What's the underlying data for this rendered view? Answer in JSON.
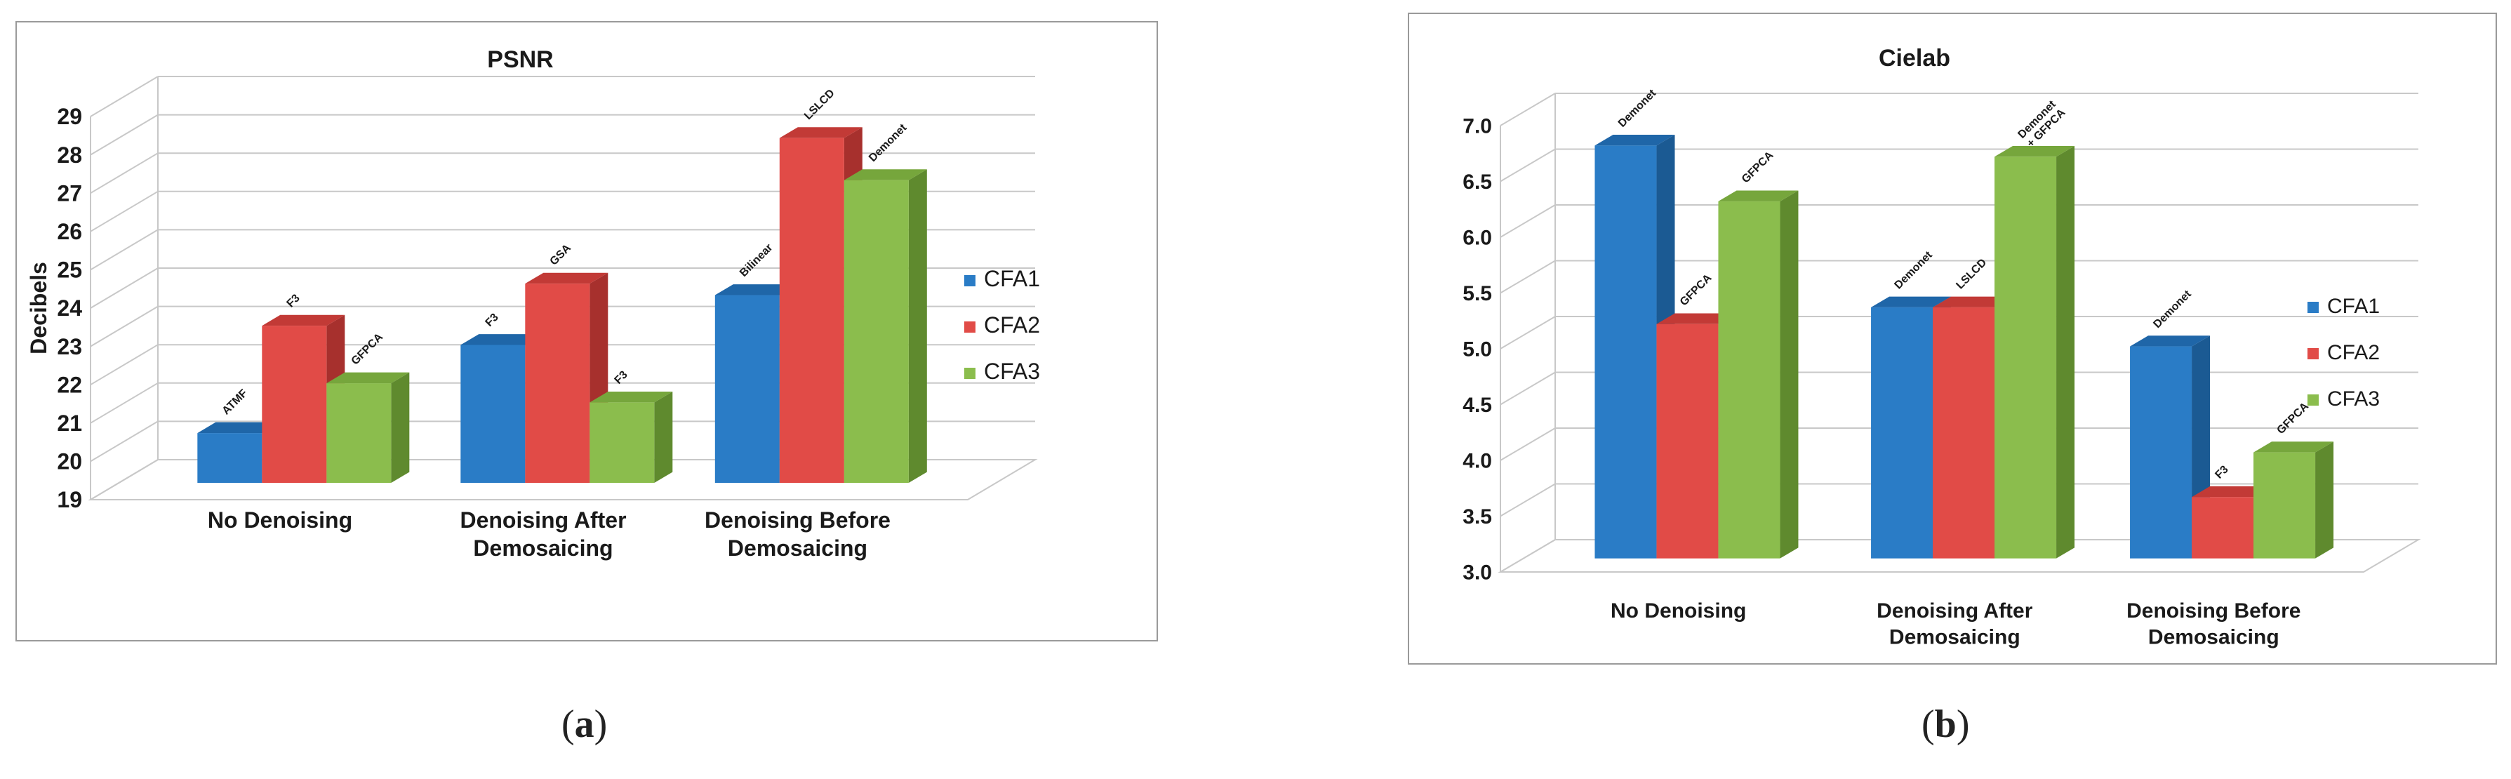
{
  "chart_data": [
    {
      "type": "bar",
      "title": "PSNR",
      "ylabel": "Decibels",
      "xlabel": "",
      "ylim": [
        19,
        29
      ],
      "ytick_step": 1,
      "ytick_decimals": 0,
      "categories": [
        "No Denoising",
        "Denoising After Demosaicing",
        "Denoising Before Demosaicing"
      ],
      "category_lines": [
        [
          "No Denoising"
        ],
        [
          "Denoising After",
          "Demosaicing"
        ],
        [
          "Denoising Before",
          "Demosaicing"
        ]
      ],
      "series": [
        {
          "name": "CFA1",
          "values": [
            20.3,
            22.6,
            23.9
          ],
          "labels": [
            [
              "ATMF"
            ],
            [
              "F3"
            ],
            [
              "Bilinear"
            ]
          ]
        },
        {
          "name": "CFA2",
          "values": [
            23.1,
            24.2,
            28.0
          ],
          "labels": [
            [
              "F3"
            ],
            [
              "GSA"
            ],
            [
              "LSLCD"
            ]
          ]
        },
        {
          "name": "CFA3",
          "values": [
            21.6,
            21.1,
            26.9
          ],
          "labels": [
            [
              "GFPCA"
            ],
            [
              "F3"
            ],
            [
              "Demonet"
            ]
          ]
        }
      ],
      "legend": "right",
      "grid": true
    },
    {
      "type": "bar",
      "title": "Cielab",
      "ylabel": "",
      "xlabel": "",
      "ylim": [
        3.0,
        7.0
      ],
      "ytick_step": 0.5,
      "ytick_decimals": 1,
      "categories": [
        "No Denoising",
        "Denoising After Demosaicing",
        "Denoising Before Demosaicing"
      ],
      "category_lines": [
        [
          "No Denoising"
        ],
        [
          "Denoising After",
          "Demosaicing"
        ],
        [
          "Denoising Before",
          "Demosaicing"
        ]
      ],
      "series": [
        {
          "name": "CFA1",
          "values": [
            6.7,
            5.25,
            4.9
          ],
          "labels": [
            [
              "Demonet"
            ],
            [
              "Demonet"
            ],
            [
              "Demonet"
            ]
          ]
        },
        {
          "name": "CFA2",
          "values": [
            5.1,
            5.25,
            3.55
          ],
          "labels": [
            [
              "GFPCA"
            ],
            [
              "LSLCD"
            ],
            [
              "F3"
            ]
          ]
        },
        {
          "name": "CFA3",
          "values": [
            6.2,
            6.6,
            3.95
          ],
          "labels": [
            [
              "GFPCA"
            ],
            [
              "Demonet",
              "+ GFPCA"
            ],
            [
              "GFPCA"
            ]
          ]
        }
      ],
      "legend": "right",
      "grid": true
    }
  ],
  "colors": {
    "CFA1": {
      "front": "#2a7cc6",
      "side": "#1b5a93",
      "top": "#1f66a8"
    },
    "CFA2": {
      "front": "#e14b47",
      "side": "#a7302d",
      "top": "#c23a36"
    },
    "CFA3": {
      "front": "#8bbd4d",
      "side": "#5f8a2e",
      "top": "#76a63c"
    },
    "grid": "#c8c8c8",
    "text": "#1a1a1a"
  },
  "captions": [
    {
      "open": "(",
      "letter": "a",
      "close": ")"
    },
    {
      "open": "(",
      "letter": "b",
      "close": ")"
    }
  ]
}
